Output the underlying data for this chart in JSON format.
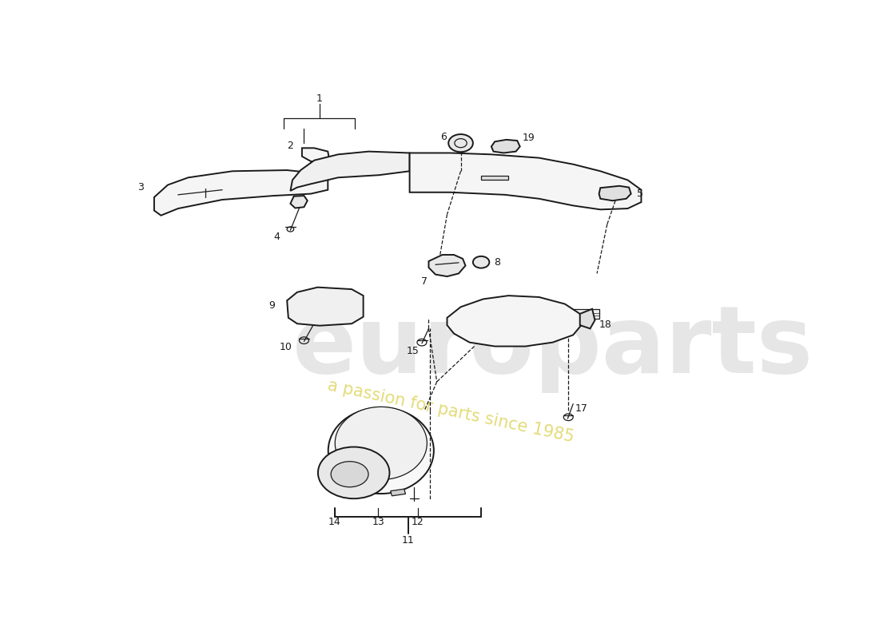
{
  "background_color": "#ffffff",
  "line_color": "#1a1a1a",
  "lw_main": 1.4,
  "lw_thin": 0.9,
  "label_fontsize": 9,
  "fig_width": 11.0,
  "fig_height": 8.0,
  "wm_large": "europarts",
  "wm_small": "a passion for parts since 1985",
  "wm_large_color": "#e2e2e2",
  "wm_small_color": "#d8cc40"
}
